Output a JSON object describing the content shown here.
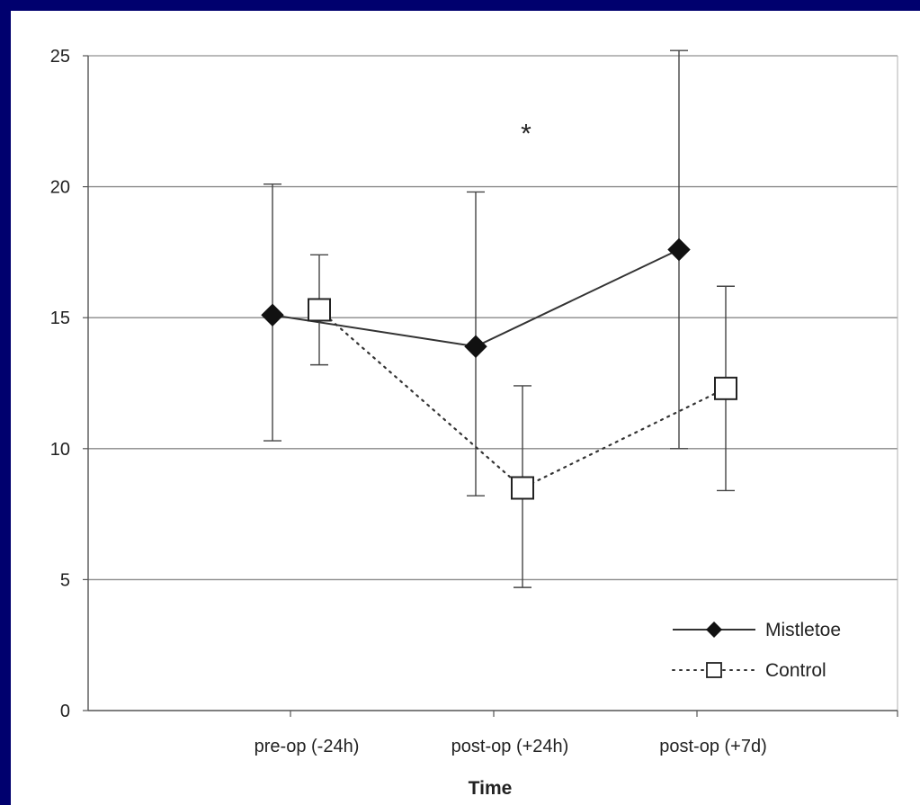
{
  "colors": {
    "background": "#00006e",
    "plot_area": "#ffffff",
    "grid": "#8a8a8a",
    "series_line": "#333333",
    "mistletoe_marker": "#111111",
    "control_marker_fill": "#ffffff"
  },
  "chart_data": {
    "type": "line",
    "title": "",
    "xlabel": "Time",
    "ylabel": "",
    "categories": [
      "pre-op (-24h)",
      "post-op (+24h)",
      "post-op (+7d)"
    ],
    "ylim": [
      0,
      25
    ],
    "yticks": [
      "0",
      "5",
      "10",
      "15",
      "20",
      "25"
    ],
    "grid": "horizontal",
    "legend_position": "bottom-right",
    "annotations": [
      {
        "text": "*",
        "category": "post-op (+24h)",
        "y": 22.3
      }
    ],
    "series": [
      {
        "name": "Mistletoe",
        "line_style": "solid",
        "marker": "diamond-filled",
        "values": [
          15.1,
          13.9,
          17.6
        ],
        "error_low": [
          10.3,
          8.2,
          10.0
        ],
        "error_high": [
          20.1,
          19.8,
          25.2
        ]
      },
      {
        "name": "Control",
        "line_style": "dotted",
        "marker": "square-open",
        "values": [
          15.3,
          8.5,
          12.3
        ],
        "error_low": [
          13.2,
          4.7,
          8.4
        ],
        "error_high": [
          17.4,
          12.4,
          16.2
        ]
      }
    ]
  }
}
